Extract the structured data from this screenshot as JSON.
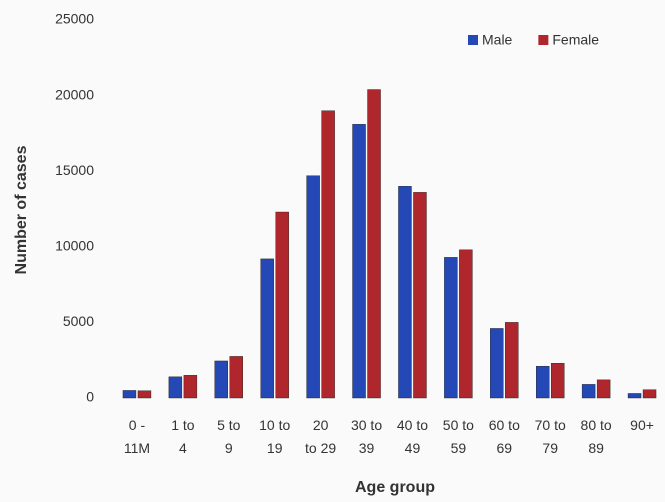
{
  "chart_data": {
    "type": "bar",
    "x_label": "Age group",
    "y_label": "Number of cases",
    "categories": [
      "0 -\n11M",
      "1 to\n4",
      "5 to\n9",
      "10 to\n19",
      "20\nto 29",
      "30 to\n39",
      "40 to\n49",
      "50 to\n59",
      "60 to\n69",
      "70 to\n79",
      "80 to\n89",
      "90+"
    ],
    "series": [
      {
        "name": "Male",
        "color": "#2448b5",
        "values": [
          500,
          1400,
          2450,
          9200,
          14700,
          18100,
          14000,
          9300,
          4600,
          2100,
          900,
          300
        ]
      },
      {
        "name": "Female",
        "color": "#b0262d",
        "values": [
          480,
          1500,
          2750,
          12300,
          19000,
          20400,
          13600,
          9800,
          5000,
          2300,
          1200,
          550
        ]
      }
    ],
    "ylim": [
      0,
      25000
    ],
    "yticks": [
      0,
      5000,
      10000,
      15000,
      20000,
      25000
    ],
    "grid": false,
    "legend": "top-right"
  }
}
